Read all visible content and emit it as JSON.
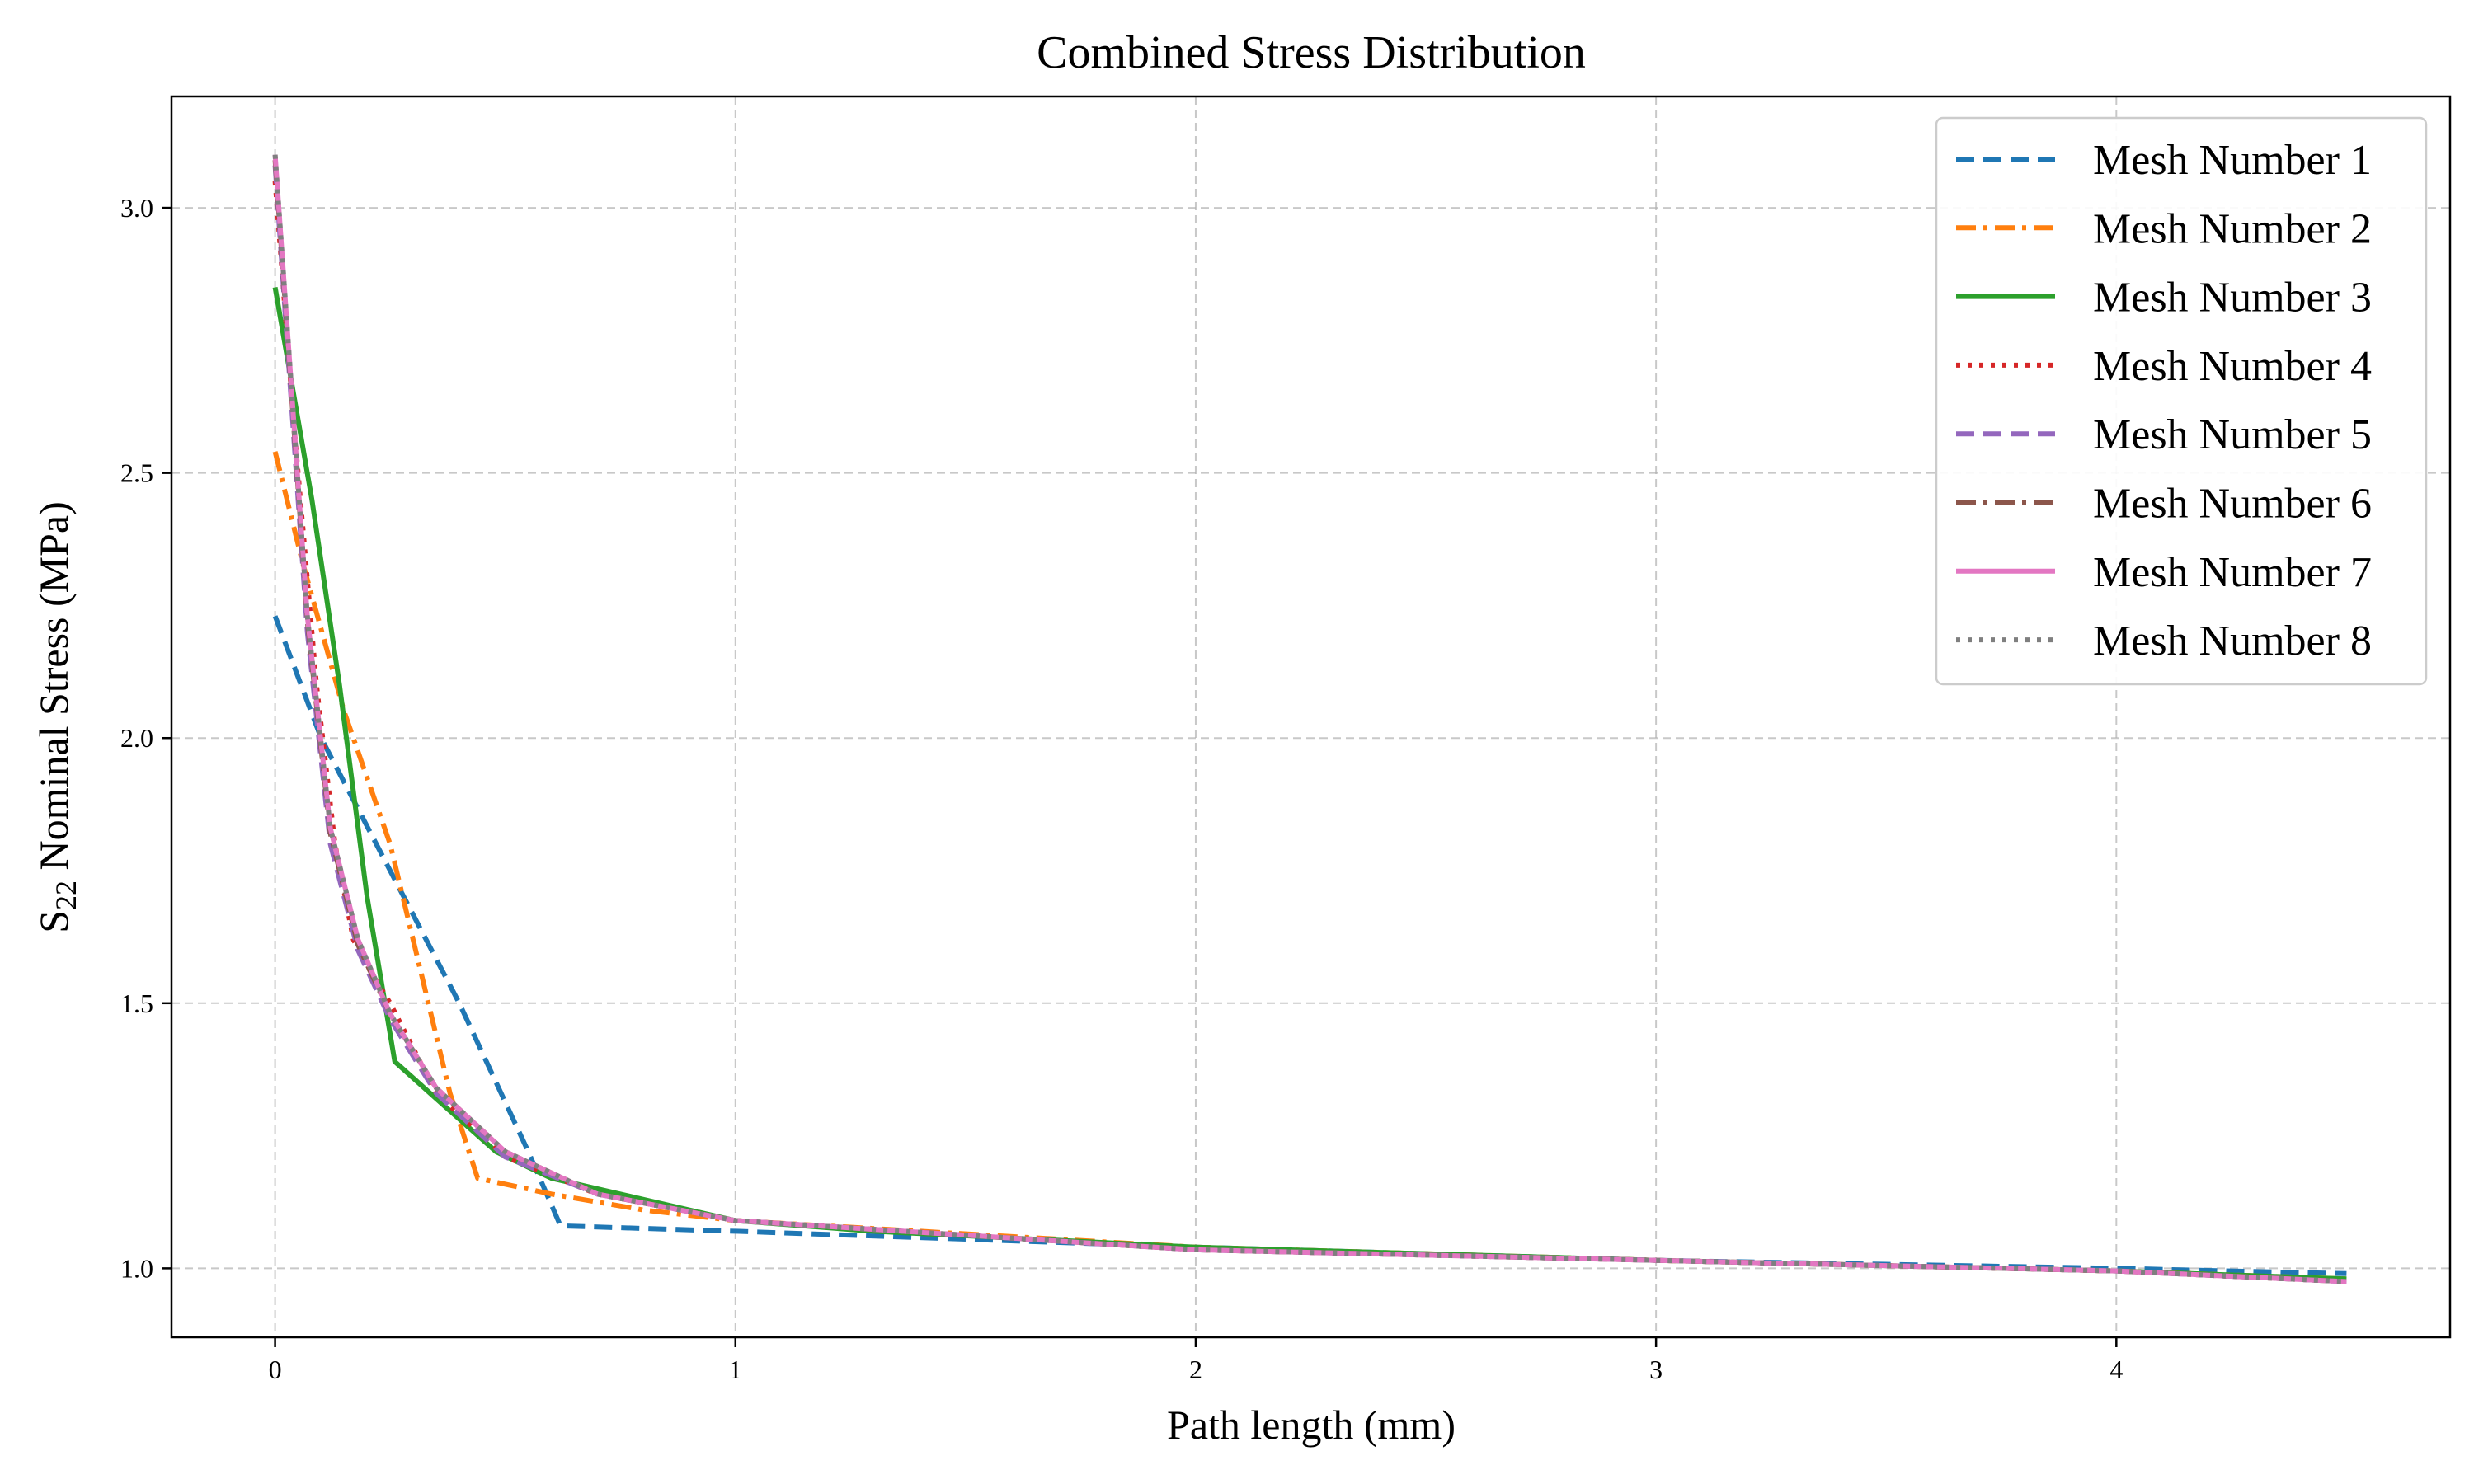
{
  "chart_data": {
    "type": "line",
    "title": "Combined Stress Distribution",
    "xlabel": "Path length (mm)",
    "ylabel_base": "S",
    "ylabel_sub": "22",
    "ylabel_rest": " Nominal Stress (MPa)",
    "xlim": [
      -0.225,
      4.725
    ],
    "ylim": [
      0.87,
      3.21
    ],
    "xticks": [
      0,
      1,
      2,
      3,
      4
    ],
    "xtick_labels": [
      "0",
      "1",
      "2",
      "3",
      "4"
    ],
    "yticks": [
      1.0,
      1.5,
      2.0,
      2.5,
      3.0
    ],
    "ytick_labels": [
      "1.0",
      "1.5",
      "2.0",
      "2.5",
      "3.0"
    ],
    "grid": true,
    "legend_position": "top-right",
    "series": [
      {
        "name": "Mesh Number 1",
        "color": "#1f77b4",
        "style": "dashed",
        "x": [
          0,
          0.1,
          0.25,
          0.4,
          0.55,
          0.62,
          1.0,
          2.0,
          3.0,
          4.0,
          4.5
        ],
        "y": [
          2.23,
          2.0,
          1.75,
          1.5,
          1.22,
          1.08,
          1.07,
          1.04,
          1.015,
          1.0,
          0.99
        ]
      },
      {
        "name": "Mesh Number 2",
        "color": "#ff7f0e",
        "style": "dashdot",
        "x": [
          0,
          0.06,
          0.15,
          0.25,
          0.38,
          0.44,
          0.6,
          0.8,
          1.0,
          2.0,
          3.0,
          4.0,
          4.5
        ],
        "y": [
          2.54,
          2.33,
          2.05,
          1.8,
          1.33,
          1.17,
          1.14,
          1.11,
          1.09,
          1.04,
          1.015,
          0.995,
          0.98
        ]
      },
      {
        "name": "Mesh Number 3",
        "color": "#2ca02c",
        "style": "solid",
        "x": [
          0,
          0.08,
          0.14,
          0.2,
          0.26,
          0.35,
          0.48,
          0.6,
          0.8,
          1.0,
          1.3,
          2.0,
          3.0,
          4.0,
          4.5
        ],
        "y": [
          2.85,
          2.45,
          2.1,
          1.7,
          1.39,
          1.32,
          1.22,
          1.17,
          1.13,
          1.09,
          1.07,
          1.04,
          1.015,
          0.995,
          0.98
        ]
      },
      {
        "name": "Mesh Number 4",
        "color": "#d62728",
        "style": "dotted",
        "x": [
          0,
          0.04,
          0.09,
          0.13,
          0.17,
          0.2,
          0.25,
          0.35,
          0.5,
          0.7,
          1.0,
          2.0,
          3.0,
          4.0,
          4.5
        ],
        "y": [
          3.05,
          2.6,
          2.1,
          1.8,
          1.62,
          1.57,
          1.5,
          1.33,
          1.21,
          1.14,
          1.09,
          1.035,
          1.015,
          0.995,
          0.975
        ]
      },
      {
        "name": "Mesh Number 5",
        "color": "#9467bd",
        "style": "dashed",
        "x": [
          0,
          0.03,
          0.07,
          0.12,
          0.18,
          0.25,
          0.35,
          0.5,
          0.7,
          1.0,
          2.0,
          3.0,
          4.0,
          4.5
        ],
        "y": [
          3.08,
          2.7,
          2.2,
          1.8,
          1.6,
          1.47,
          1.33,
          1.21,
          1.14,
          1.09,
          1.035,
          1.015,
          0.995,
          0.975
        ]
      },
      {
        "name": "Mesh Number 6",
        "color": "#8c564b",
        "style": "dashdot",
        "x": [
          0,
          0.03,
          0.07,
          0.12,
          0.18,
          0.25,
          0.35,
          0.5,
          0.7,
          1.0,
          2.0,
          3.0,
          4.0,
          4.5
        ],
        "y": [
          3.09,
          2.72,
          2.22,
          1.82,
          1.61,
          1.48,
          1.34,
          1.22,
          1.14,
          1.09,
          1.035,
          1.015,
          0.995,
          0.975
        ]
      },
      {
        "name": "Mesh Number 7",
        "color": "#e377c2",
        "style": "solid",
        "x": [
          0,
          0.03,
          0.07,
          0.12,
          0.18,
          0.25,
          0.35,
          0.5,
          0.7,
          1.0,
          2.0,
          3.0,
          4.0,
          4.5
        ],
        "y": [
          3.1,
          2.73,
          2.23,
          1.83,
          1.62,
          1.48,
          1.34,
          1.22,
          1.14,
          1.09,
          1.035,
          1.015,
          0.995,
          0.975
        ]
      },
      {
        "name": "Mesh Number 8",
        "color": "#7f7f7f",
        "style": "dotted",
        "x": [
          0,
          0.03,
          0.07,
          0.12,
          0.18,
          0.25,
          0.35,
          0.5,
          0.7,
          1.0,
          2.0,
          3.0,
          4.0,
          4.5
        ],
        "y": [
          3.1,
          2.73,
          2.23,
          1.83,
          1.62,
          1.48,
          1.34,
          1.22,
          1.14,
          1.09,
          1.035,
          1.015,
          0.995,
          0.975
        ]
      }
    ]
  }
}
